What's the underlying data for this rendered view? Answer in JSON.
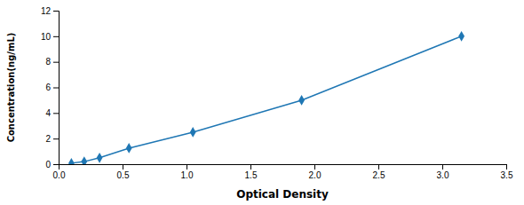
{
  "chart_data": {
    "type": "line",
    "x": [
      0.1,
      0.2,
      0.32,
      0.55,
      1.05,
      1.9,
      3.15
    ],
    "values": [
      0.078,
      0.2,
      0.5,
      1.25,
      2.5,
      5.0,
      10.0
    ],
    "marker": "diamond",
    "xlabel": "Optical Density",
    "ylabel": "Concentration(ng/mL)",
    "xlim": [
      0,
      3.5
    ],
    "ylim": [
      0,
      12
    ],
    "xticks": [
      {
        "value": 0,
        "label": "0.0"
      },
      0.5,
      {
        "value": 1.0,
        "label": "1.0"
      },
      1.5,
      {
        "value": 2.0,
        "label": "2.0"
      },
      2.5,
      {
        "value": 3.0,
        "label": "3.0"
      },
      3.5
    ],
    "yticks": [
      0,
      2,
      4,
      6,
      8,
      10,
      12
    ],
    "grid": false
  }
}
